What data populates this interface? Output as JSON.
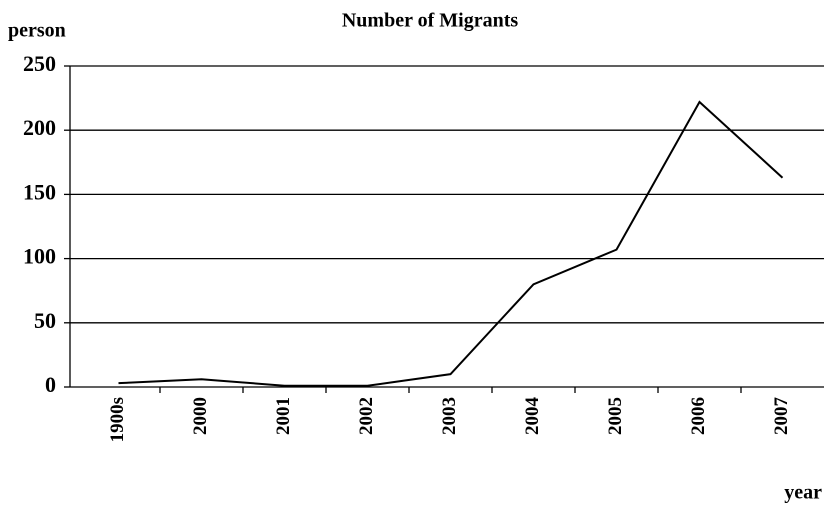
{
  "chart_data": {
    "type": "line",
    "title": "Number of Migrants",
    "ylabel": "person",
    "xlabel": "year",
    "categories": [
      "1900s",
      "2000",
      "2001",
      "2002",
      "2003",
      "2004",
      "2005",
      "2006",
      "2007"
    ],
    "values": [
      3,
      6,
      1,
      1,
      10,
      80,
      107,
      222,
      163
    ],
    "color": "#000000",
    "ylim": [
      0,
      250
    ],
    "yticks": [
      0,
      50,
      100,
      150,
      200,
      250
    ],
    "grid": true
  }
}
